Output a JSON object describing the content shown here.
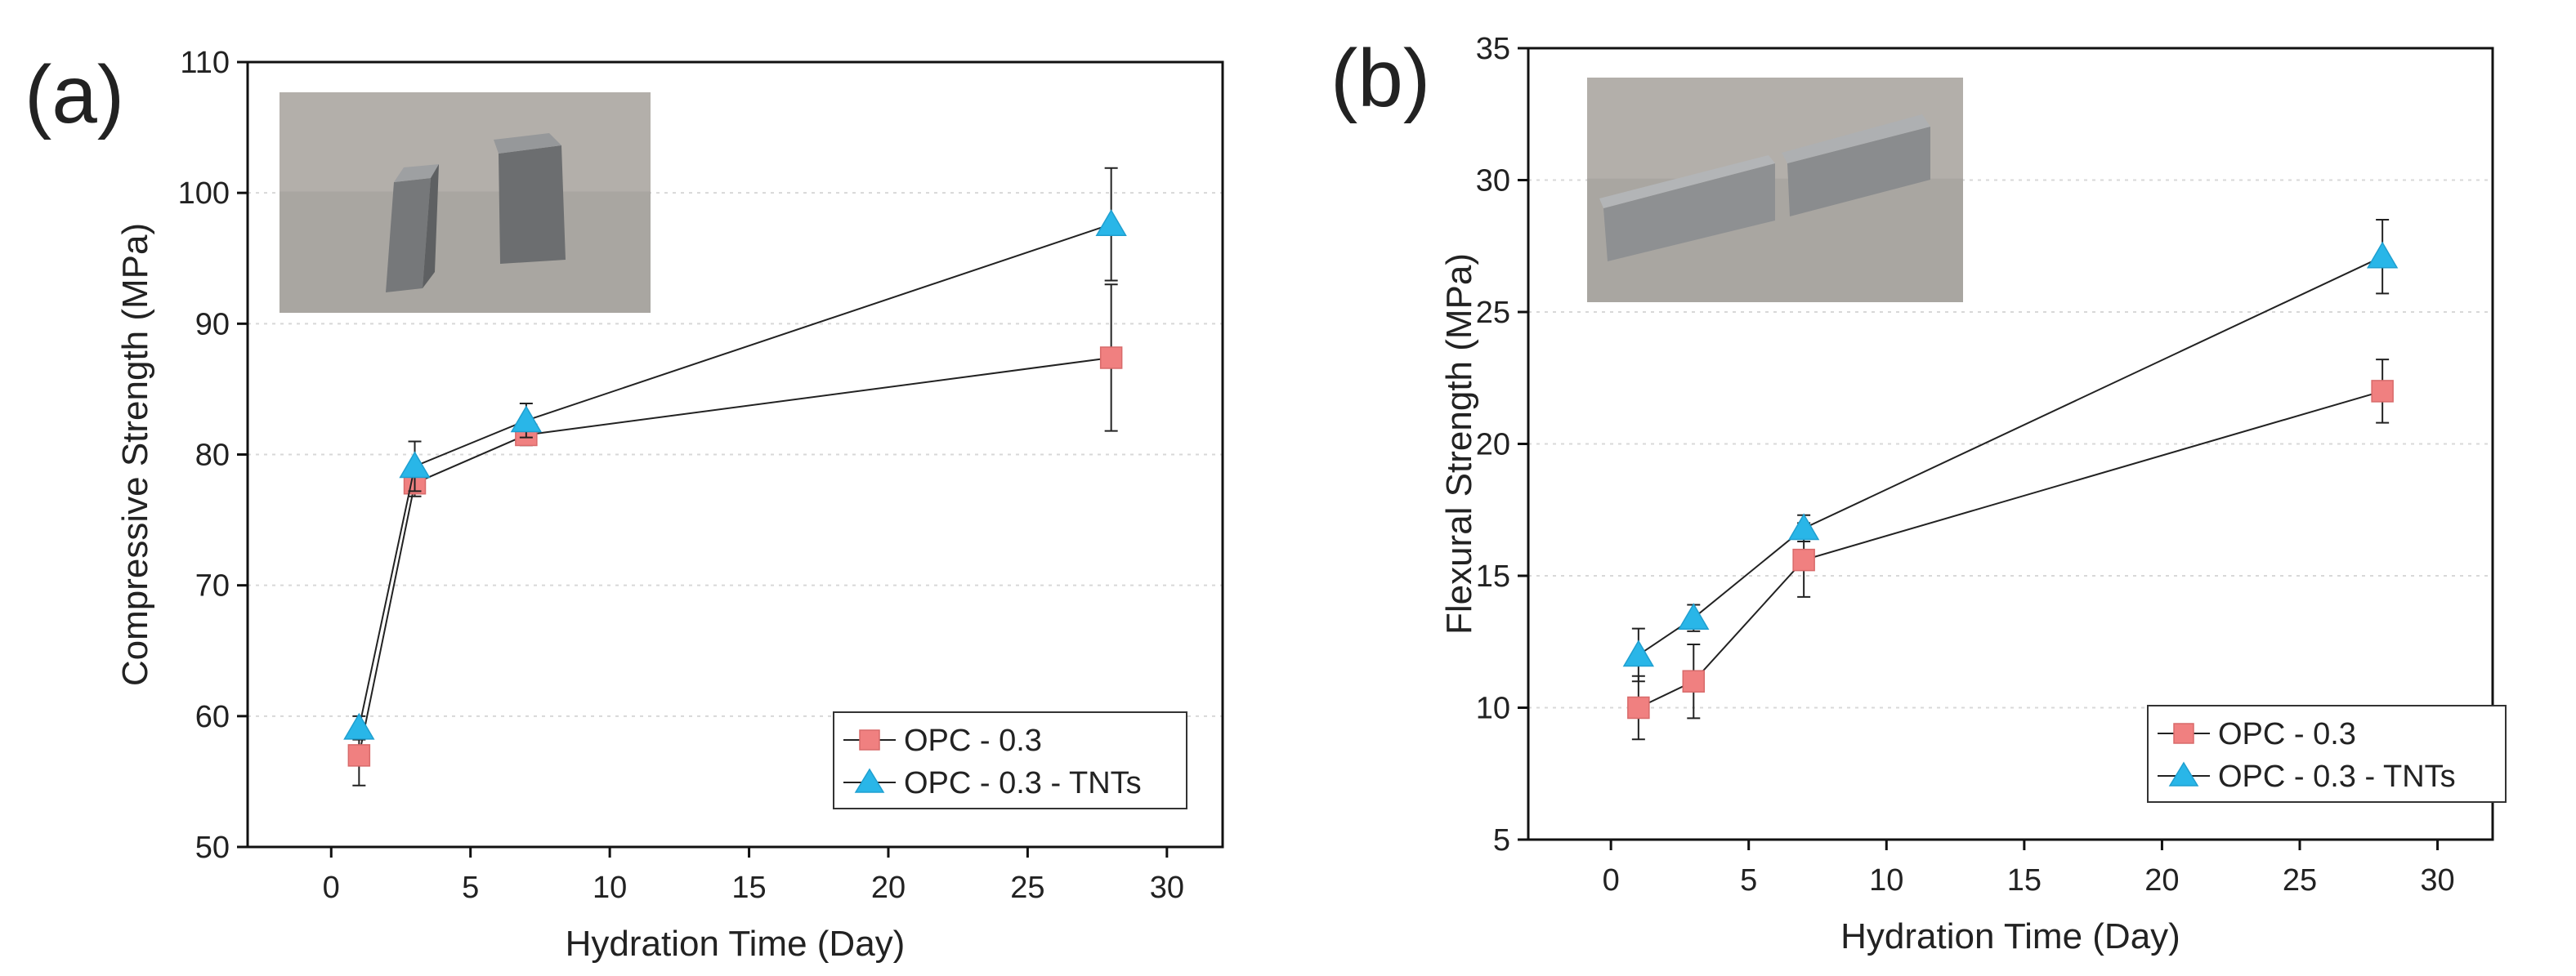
{
  "chart_data": [
    {
      "panel": "(a)",
      "type": "line",
      "xlabel": "Hydration Time (Day)",
      "ylabel": "Compressive Strength (MPa)",
      "xlim": [
        -3,
        32
      ],
      "ylim": [
        50,
        110
      ],
      "xticks": [
        0,
        5,
        10,
        15,
        20,
        25,
        30
      ],
      "yticks": [
        50,
        60,
        70,
        80,
        90,
        100,
        110
      ],
      "grid": "horizontal-dotted",
      "legend_position": "bottom-right",
      "inset_photo": "two cube specimens",
      "series": [
        {
          "name": "OPC - 0.3",
          "marker": "square",
          "color": "#f08080",
          "x": [
            1,
            3,
            7,
            28
          ],
          "y": [
            57,
            77.8,
            81.5,
            87.4
          ],
          "err": [
            2.3,
            1.0,
            0.8,
            5.6
          ]
        },
        {
          "name": "OPC - 0.3 - TNTs",
          "marker": "triangle",
          "color": "#29b6e8",
          "x": [
            1,
            3,
            7,
            28
          ],
          "y": [
            59.1,
            79.1,
            82.6,
            97.6
          ],
          "err": [
            0.9,
            1.9,
            1.3,
            4.3
          ]
        }
      ]
    },
    {
      "panel": "(b)",
      "type": "line",
      "xlabel": "Hydration Time (Day)",
      "ylabel": "Flexural Strength (MPa)",
      "xlim": [
        -3,
        32
      ],
      "ylim": [
        5,
        35
      ],
      "xticks": [
        0,
        5,
        10,
        15,
        20,
        25,
        30
      ],
      "yticks": [
        5,
        10,
        15,
        20,
        25,
        30,
        35
      ],
      "grid": "horizontal-dotted",
      "legend_position": "bottom-right",
      "inset_photo": "two prism specimens",
      "series": [
        {
          "name": "OPC - 0.3",
          "marker": "square",
          "color": "#f08080",
          "x": [
            1,
            3,
            7,
            28
          ],
          "y": [
            10.0,
            11.0,
            15.6,
            22.0
          ],
          "err": [
            1.2,
            1.4,
            1.4,
            1.2
          ]
        },
        {
          "name": "OPC - 0.3 - TNTs",
          "marker": "triangle",
          "color": "#29b6e8",
          "x": [
            1,
            3,
            7,
            28
          ],
          "y": [
            12.0,
            13.4,
            16.8,
            27.1
          ],
          "err": [
            1.0,
            0.5,
            0.5,
            1.4
          ]
        }
      ]
    }
  ]
}
